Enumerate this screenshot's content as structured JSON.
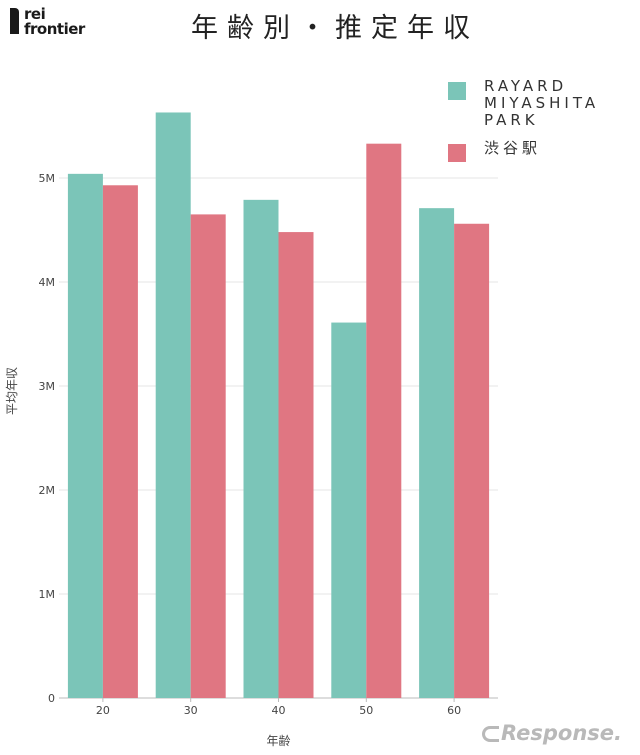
{
  "logo": {
    "line1": "rei",
    "line2": "frontier"
  },
  "title": "年齢別・推定年収",
  "legend": [
    {
      "label": "RAYARD\nMIYASHITA\nPARK",
      "color": "#7bc5b8"
    },
    {
      "label": "渋谷駅",
      "color": "#e07682"
    }
  ],
  "watermark": "Response.",
  "chart_data": {
    "type": "bar",
    "title": "年齢別・推定年収",
    "xlabel": "年齢",
    "ylabel": "平均年収",
    "categories": [
      "20",
      "30",
      "40",
      "50",
      "60"
    ],
    "series": [
      {
        "name": "RAYARD MIYASHITA PARK",
        "color": "#7bc5b8",
        "values": [
          5040000,
          5630000,
          4790000,
          3610000,
          4710000
        ]
      },
      {
        "name": "渋谷駅",
        "color": "#e07682",
        "values": [
          4930000,
          4650000,
          4480000,
          5330000,
          4560000
        ]
      }
    ],
    "ylim": [
      0,
      5700000
    ],
    "yticks": [
      {
        "value": 0,
        "label": "0"
      },
      {
        "value": 1000000,
        "label": "1M"
      },
      {
        "value": 2000000,
        "label": "2M"
      },
      {
        "value": 3000000,
        "label": "3M"
      },
      {
        "value": 4000000,
        "label": "4M"
      },
      {
        "value": 5000000,
        "label": "5M"
      }
    ],
    "grid": true,
    "legend_position": "top-right"
  }
}
